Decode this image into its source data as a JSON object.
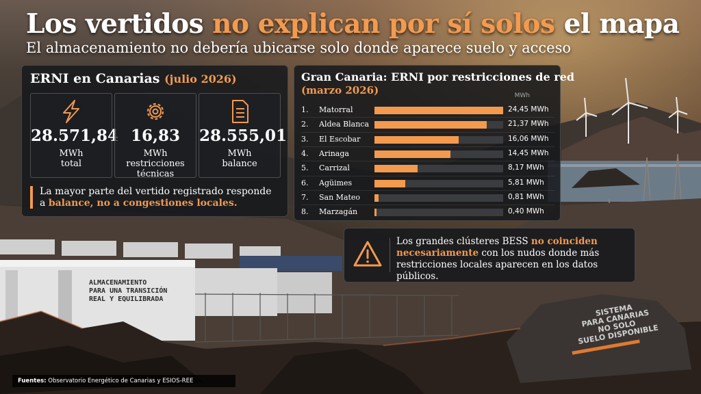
{
  "header": {
    "title_part1": "Los vertidos",
    "title_highlight": "no explican por sí solos",
    "title_part2": "el mapa",
    "subtitle": "El almacenamiento no debería ubicarse solo donde aparece suelo y acceso"
  },
  "left_panel": {
    "title": "ERNI en Canarias",
    "period": "(julio 2026)",
    "stats": [
      {
        "icon": "lightning-icon",
        "value": "28.571,84",
        "unit_line1": "MWh",
        "unit_line2": "total",
        "unit_line3": ""
      },
      {
        "icon": "gear-icon",
        "value": "16,83",
        "unit_line1": "MWh",
        "unit_line2": "restricciones",
        "unit_line3": "técnicas"
      },
      {
        "icon": "document-icon",
        "value": "28.555,01",
        "unit_line1": "MWh",
        "unit_line2": "balance",
        "unit_line3": ""
      }
    ],
    "note_part1": "La mayor parte del vertido registrado responde",
    "note_part2": "a",
    "note_highlight": "balance, no a congestiones locales."
  },
  "right_panel": {
    "title": "Gran Canaria: ERNI por restricciones de red",
    "period": "(marzo 2026)",
    "unit": "MWh"
  },
  "chart_data": {
    "type": "bar",
    "title": "Gran Canaria: ERNI por restricciones de red",
    "subtitle": "(marzo 2026)",
    "ylabel": "MWh",
    "categories": [
      "Matorral",
      "Aldea Blanca",
      "El Escobar",
      "Arinaga",
      "Carrizal",
      "Agüimes",
      "San Mateo",
      "Marzagán"
    ],
    "ranks": [
      "1.",
      "2.",
      "3.",
      "4.",
      "5.",
      "6.",
      "7.",
      "8."
    ],
    "values": [
      24.45,
      21.37,
      16.06,
      14.45,
      8.17,
      5.81,
      0.81,
      0.4
    ],
    "value_labels": [
      "24,45 MWh",
      "21,37 MWh",
      "16,06 MWh",
      "14,45 MWh",
      "8,17 MWh",
      "5,81 MWh",
      "0,81 MWh",
      "0,40 MWh"
    ],
    "max": 24.45
  },
  "callout": {
    "text1": "Los grandes clústeres BESS",
    "highlight": "no coinciden necesariamente",
    "text2": "con los nudos donde más restricciones locales aparecen en los datos públicos."
  },
  "scene": {
    "container_label_lines": [
      "ALMACENAMIENTO",
      "PARA UNA TRANSICIÓN",
      "REAL Y EQUILIBRADA"
    ],
    "rock_text_lines": [
      "SISTEMA",
      "PARA CANARIAS",
      "NO SOLO",
      "SUELO DISPONIBLE"
    ]
  },
  "footer": {
    "sources_label": "Fuentes:",
    "sources_text": "Observatorio Energético de Canarias y ESIOS-REE"
  },
  "colors": {
    "accent": "#f39a4f",
    "panel": "#16181c",
    "bar_track": "#3a3c40"
  }
}
